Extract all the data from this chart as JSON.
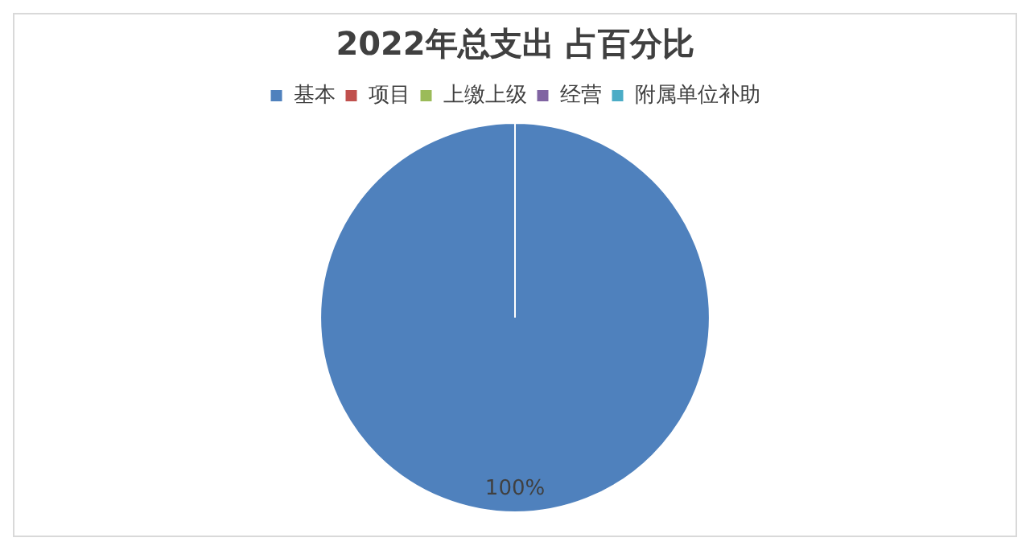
{
  "chart_data": {
    "type": "pie",
    "title": "2022年总支出 占百分比",
    "categories": [
      "基本",
      "项目",
      "上缴上级",
      "经营",
      "附属单位补助"
    ],
    "values": [
      100,
      0,
      0,
      0,
      0
    ],
    "colors": [
      "#4f81bd",
      "#c0504d",
      "#9bbb59",
      "#8064a2",
      "#4bacc6"
    ],
    "value_labels": [
      "100%",
      null,
      null,
      null,
      null
    ],
    "legend": "top"
  }
}
